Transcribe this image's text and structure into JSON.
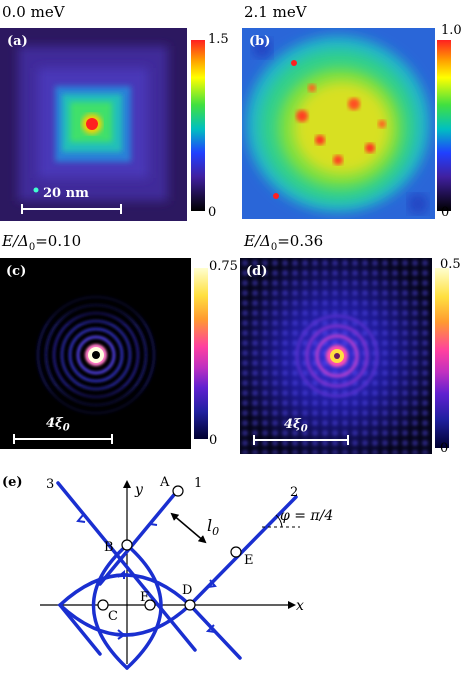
{
  "panels": {
    "a": {
      "label": "(a)",
      "heading": "0.0 meV",
      "cbar_max": "1.5",
      "cbar_min": "0",
      "scale": "20 nm"
    },
    "b": {
      "label": "(b)",
      "heading": "2.1 meV",
      "cbar_max": "1.0",
      "cbar_min": "0"
    },
    "c": {
      "label": "(c)",
      "heading_sym": "E/Δ",
      "heading_sub": "0",
      "heading_val": "=0.10",
      "cbar_max": "0.75",
      "cbar_min": "0",
      "scale_main": "4ξ",
      "scale_sub": "0"
    },
    "d": {
      "label": "(d)",
      "heading_sym": "E/Δ",
      "heading_sub": "0",
      "heading_val": "=0.36",
      "cbar_max": "0.5",
      "cbar_min": "0",
      "scale_main": "4ξ",
      "scale_sub": "0"
    }
  },
  "diagram": {
    "label": "(e)",
    "axis_x": "x",
    "axis_y": "y",
    "line_labels": [
      "1",
      "2",
      "3"
    ],
    "points": [
      "A",
      "B",
      "C",
      "D",
      "E",
      "F"
    ],
    "length_main": "l",
    "length_sub": "0",
    "angle": "φ = π/4"
  },
  "colors": {
    "line": "#1a2fd0",
    "background": "#ffffff"
  }
}
